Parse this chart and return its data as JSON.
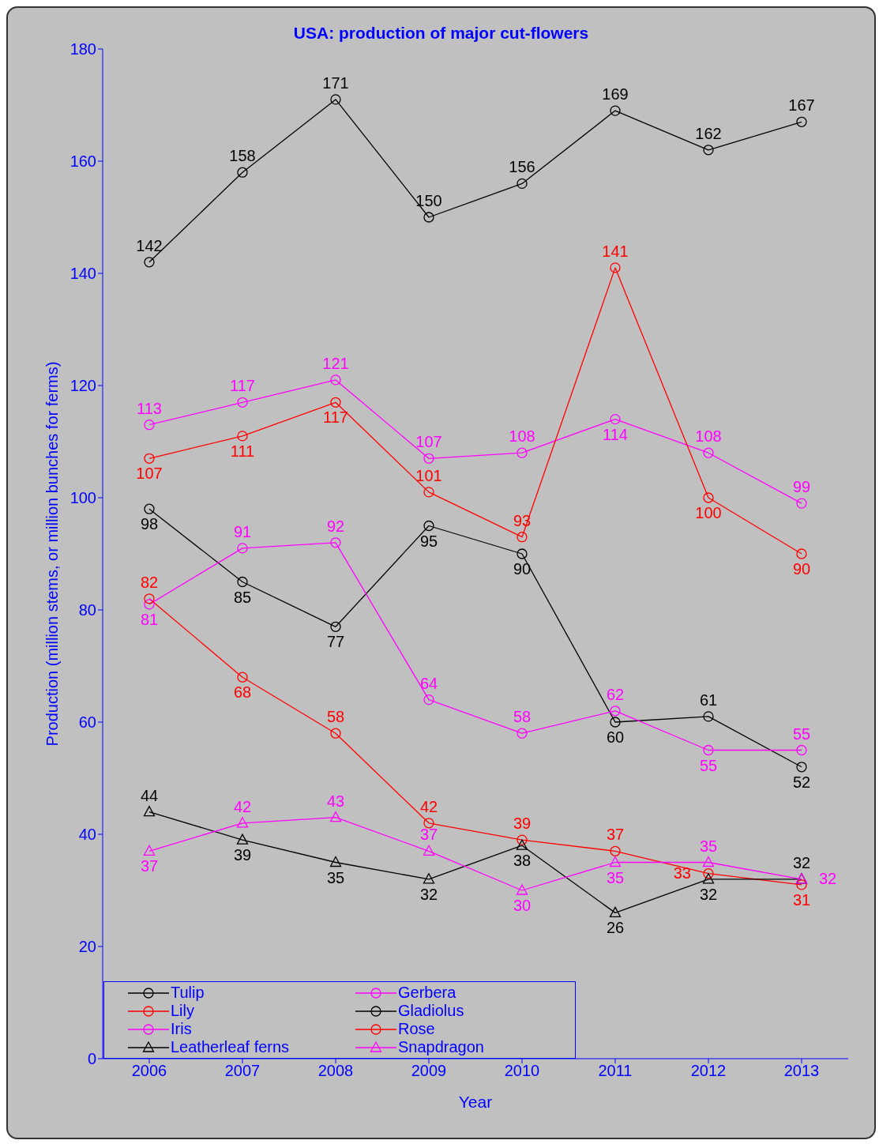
{
  "chart_data": {
    "type": "line",
    "title": "USA: production of major cut-flowers",
    "xlabel": "Year",
    "ylabel": "Production (million stems, or million bunches for ferms)",
    "categories": [
      "2006",
      "2007",
      "2008",
      "2009",
      "2010",
      "2011",
      "2012",
      "2013"
    ],
    "ylim": [
      0,
      180
    ],
    "yticks": [
      0,
      20,
      40,
      60,
      80,
      100,
      120,
      140,
      160,
      180
    ],
    "grid": false,
    "legend": "bottom left",
    "data_labels": true,
    "series": [
      {
        "name": "Tulip",
        "color": "#000000",
        "marker": "circle",
        "values": [
          142,
          158,
          171,
          150,
          156,
          169,
          162,
          167
        ]
      },
      {
        "name": "Gerbera",
        "color": "#ff00ff",
        "marker": "circle",
        "values": [
          113,
          117,
          121,
          107,
          108,
          114,
          108,
          99
        ]
      },
      {
        "name": "Lily",
        "color": "#ff0000",
        "marker": "circle",
        "values": [
          107,
          111,
          117,
          101,
          93,
          141,
          100,
          90
        ]
      },
      {
        "name": "Gladiolus",
        "color": "#000000",
        "marker": "circle",
        "values": [
          98,
          85,
          77,
          95,
          90,
          60,
          61,
          52
        ]
      },
      {
        "name": "Iris",
        "color": "#ff00ff",
        "marker": "circle",
        "values": [
          81,
          91,
          92,
          64,
          58,
          62,
          55,
          55
        ]
      },
      {
        "name": "Rose",
        "color": "#ff0000",
        "marker": "circle",
        "values": [
          82,
          68,
          58,
          42,
          39,
          37,
          33,
          31
        ]
      },
      {
        "name": "Leatherleaf ferns",
        "color": "#000000",
        "marker": "triangle",
        "values": [
          44,
          39,
          35,
          32,
          38,
          26,
          32,
          32
        ]
      },
      {
        "name": "Snapdragon",
        "color": "#ff00ff",
        "marker": "triangle",
        "values": [
          37,
          42,
          43,
          37,
          30,
          35,
          35,
          32
        ]
      }
    ]
  }
}
